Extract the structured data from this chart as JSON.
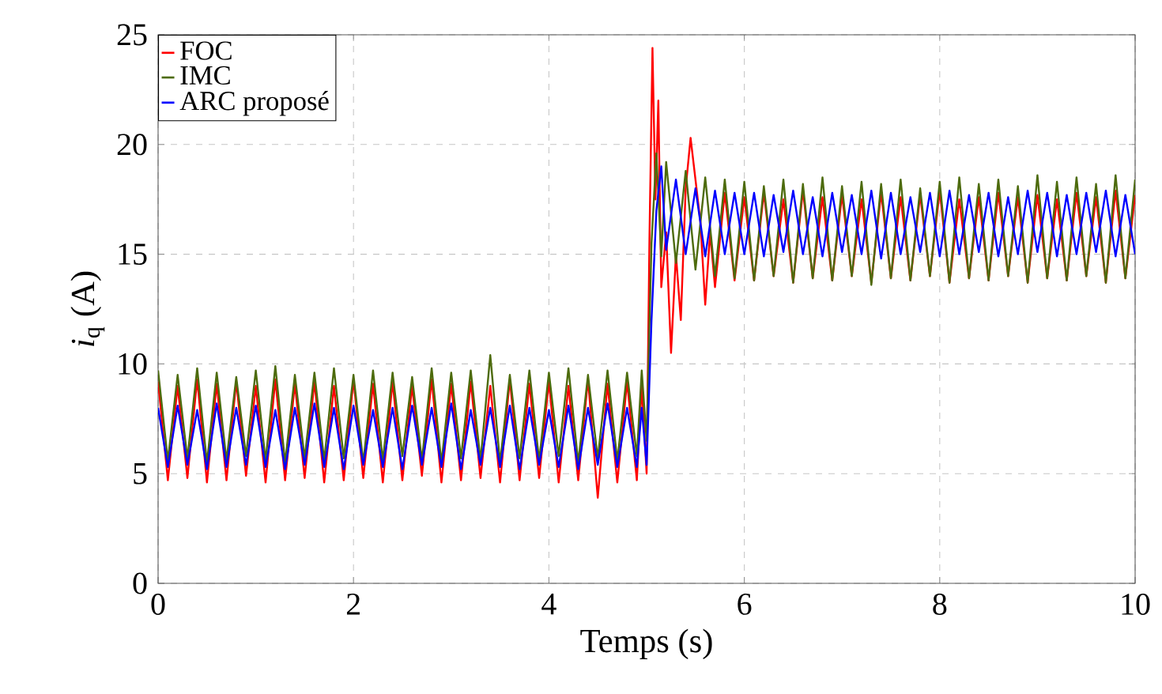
{
  "chart_data": {
    "type": "line",
    "xlabel": "Temps (s)",
    "ylabel": "*i*$_{q}$ (A)",
    "xlim": [
      0,
      10
    ],
    "ylim": [
      0,
      25
    ],
    "xticks": [
      0,
      2,
      4,
      6,
      8,
      10
    ],
    "yticks": [
      0,
      5,
      10,
      15,
      20,
      25
    ],
    "grid": true,
    "legend": "top left",
    "line_style": "solid",
    "series": [
      {
        "name": "FOC",
        "color": "#ff0000",
        "x": [
          0,
          0.1,
          0.2,
          0.3,
          0.4,
          0.5,
          0.6,
          0.7,
          0.8,
          0.9,
          1.0,
          1.1,
          1.2,
          1.3,
          1.4,
          1.5,
          1.6,
          1.7,
          1.8,
          1.9,
          2.0,
          2.1,
          2.2,
          2.3,
          2.4,
          2.5,
          2.6,
          2.7,
          2.8,
          2.9,
          3.0,
          3.1,
          3.2,
          3.3,
          3.4,
          3.5,
          3.6,
          3.7,
          3.8,
          3.9,
          4.0,
          4.1,
          4.2,
          4.3,
          4.4,
          4.5,
          4.6,
          4.7,
          4.8,
          4.9,
          4.95,
          5.0,
          5.03,
          5.06,
          5.09,
          5.12,
          5.15,
          5.2,
          5.25,
          5.3,
          5.35,
          5.4,
          5.45,
          5.55,
          5.6,
          5.65,
          5.7,
          5.8,
          5.9,
          6.0,
          6.1,
          6.2,
          6.3,
          6.4,
          6.5,
          6.6,
          6.7,
          6.8,
          6.9,
          7.0,
          7.1,
          7.2,
          7.3,
          7.4,
          7.5,
          7.6,
          7.7,
          7.8,
          7.9,
          8.0,
          8.1,
          8.2,
          8.3,
          8.4,
          8.5,
          8.6,
          8.7,
          8.8,
          8.9,
          9.0,
          9.1,
          9.2,
          9.3,
          9.4,
          9.5,
          9.6,
          9.7,
          9.8,
          9.9,
          10.0
        ],
        "values": [
          9.2,
          4.7,
          9.0,
          4.8,
          9.3,
          4.6,
          9.1,
          4.7,
          9.2,
          4.9,
          9.0,
          4.6,
          9.3,
          4.7,
          9.1,
          4.8,
          9.2,
          4.6,
          9.0,
          4.7,
          9.3,
          4.8,
          9.1,
          4.6,
          9.2,
          4.7,
          9.0,
          4.9,
          9.3,
          4.6,
          9.1,
          4.7,
          9.2,
          4.8,
          9.0,
          4.6,
          9.3,
          4.7,
          9.1,
          4.8,
          9.2,
          4.6,
          9.0,
          4.7,
          9.3,
          3.9,
          9.1,
          4.6,
          9.2,
          4.7,
          9.0,
          5.0,
          16.0,
          24.4,
          17.5,
          22.0,
          13.5,
          16.0,
          10.5,
          15.0,
          12.0,
          18.0,
          20.3,
          16.5,
          12.7,
          16.0,
          13.5,
          17.8,
          13.8,
          17.6,
          13.8,
          17.8,
          14.0,
          17.5,
          13.7,
          17.9,
          13.9,
          17.6,
          13.8,
          17.7,
          14.0,
          17.5,
          13.7,
          17.8,
          13.9,
          17.6,
          13.8,
          17.7,
          14.0,
          17.9,
          13.7,
          17.5,
          13.9,
          17.6,
          13.8,
          17.8,
          14.0,
          17.6,
          13.7,
          17.7,
          13.9,
          17.5,
          13.8,
          17.8,
          14.0,
          17.6,
          13.7,
          17.9,
          13.9,
          17.7
        ]
      },
      {
        "name": "IMC",
        "color": "#4d6b0d",
        "x": [
          0,
          0.1,
          0.2,
          0.3,
          0.4,
          0.5,
          0.6,
          0.7,
          0.8,
          0.9,
          1.0,
          1.1,
          1.2,
          1.3,
          1.4,
          1.5,
          1.6,
          1.7,
          1.8,
          1.9,
          2.0,
          2.1,
          2.2,
          2.3,
          2.4,
          2.5,
          2.6,
          2.7,
          2.8,
          2.9,
          3.0,
          3.1,
          3.2,
          3.3,
          3.4,
          3.5,
          3.6,
          3.7,
          3.8,
          3.9,
          4.0,
          4.1,
          4.2,
          4.3,
          4.4,
          4.5,
          4.6,
          4.7,
          4.8,
          4.9,
          4.95,
          5.0,
          5.05,
          5.1,
          5.15,
          5.2,
          5.3,
          5.4,
          5.5,
          5.6,
          5.7,
          5.8,
          5.9,
          6.0,
          6.1,
          6.2,
          6.3,
          6.4,
          6.5,
          6.6,
          6.7,
          6.8,
          6.9,
          7.0,
          7.1,
          7.2,
          7.3,
          7.4,
          7.5,
          7.6,
          7.7,
          7.8,
          7.9,
          8.0,
          8.1,
          8.2,
          8.3,
          8.4,
          8.5,
          8.6,
          8.7,
          8.8,
          8.9,
          9.0,
          9.1,
          9.2,
          9.3,
          9.4,
          9.5,
          9.6,
          9.7,
          9.8,
          9.9,
          10.0
        ],
        "values": [
          9.7,
          5.6,
          9.5,
          5.7,
          9.8,
          5.5,
          9.6,
          5.6,
          9.4,
          5.8,
          9.7,
          5.6,
          9.9,
          5.5,
          9.5,
          5.7,
          9.6,
          5.6,
          9.8,
          5.7,
          9.5,
          5.5,
          9.7,
          5.6,
          9.6,
          5.8,
          9.4,
          5.6,
          9.8,
          5.5,
          9.6,
          5.7,
          9.7,
          5.6,
          10.4,
          5.5,
          9.5,
          5.7,
          9.7,
          5.6,
          9.6,
          5.8,
          9.8,
          5.5,
          9.5,
          5.7,
          9.7,
          5.6,
          9.6,
          5.8,
          9.7,
          6.5,
          15.5,
          19.6,
          14.9,
          19.2,
          14.6,
          18.8,
          14.3,
          18.5,
          14.0,
          18.4,
          13.9,
          18.3,
          13.8,
          18.1,
          14.0,
          18.4,
          13.7,
          18.2,
          13.9,
          18.5,
          13.8,
          18.1,
          14.0,
          18.3,
          13.6,
          18.2,
          13.9,
          18.4,
          13.8,
          18.0,
          14.0,
          18.3,
          13.7,
          18.5,
          13.9,
          18.2,
          13.8,
          18.4,
          14.0,
          18.1,
          13.7,
          18.6,
          13.9,
          18.3,
          13.8,
          18.5,
          14.0,
          18.2,
          13.7,
          18.6,
          13.9,
          18.4
        ]
      },
      {
        "name": "ARC proposé",
        "color": "#0000ff",
        "x": [
          0,
          0.1,
          0.2,
          0.3,
          0.4,
          0.5,
          0.6,
          0.7,
          0.8,
          0.9,
          1.0,
          1.1,
          1.2,
          1.3,
          1.4,
          1.5,
          1.6,
          1.7,
          1.8,
          1.9,
          2.0,
          2.1,
          2.2,
          2.3,
          2.4,
          2.5,
          2.6,
          2.7,
          2.8,
          2.9,
          3.0,
          3.1,
          3.2,
          3.3,
          3.4,
          3.5,
          3.6,
          3.7,
          3.8,
          3.9,
          4.0,
          4.1,
          4.2,
          4.3,
          4.4,
          4.5,
          4.6,
          4.7,
          4.8,
          4.9,
          4.95,
          5.0,
          5.05,
          5.1,
          5.15,
          5.2,
          5.3,
          5.4,
          5.5,
          5.6,
          5.7,
          5.8,
          5.9,
          6.0,
          6.1,
          6.2,
          6.3,
          6.4,
          6.5,
          6.6,
          6.7,
          6.8,
          6.9,
          7.0,
          7.1,
          7.2,
          7.3,
          7.4,
          7.5,
          7.6,
          7.7,
          7.8,
          7.9,
          8.0,
          8.1,
          8.2,
          8.3,
          8.4,
          8.5,
          8.6,
          8.7,
          8.8,
          8.9,
          9.0,
          9.1,
          9.2,
          9.3,
          9.4,
          9.5,
          9.6,
          9.7,
          9.8,
          9.9,
          10.0
        ],
        "values": [
          8.0,
          5.3,
          8.1,
          5.4,
          7.9,
          5.2,
          8.2,
          5.3,
          8.0,
          5.4,
          8.1,
          5.3,
          7.9,
          5.2,
          8.0,
          5.4,
          8.2,
          5.3,
          8.0,
          5.2,
          8.1,
          5.4,
          7.9,
          5.3,
          8.0,
          5.2,
          8.1,
          5.4,
          8.0,
          5.3,
          8.2,
          5.2,
          7.9,
          5.4,
          8.0,
          5.3,
          8.1,
          5.2,
          8.0,
          5.4,
          7.9,
          5.3,
          8.1,
          5.2,
          8.0,
          5.4,
          8.2,
          5.3,
          8.0,
          5.3,
          8.0,
          5.4,
          12.0,
          17.0,
          19.0,
          15.2,
          18.4,
          15.0,
          18.0,
          14.9,
          17.9,
          15.0,
          17.8,
          15.0,
          17.8,
          14.9,
          17.7,
          15.1,
          17.9,
          15.0,
          17.6,
          14.9,
          17.8,
          15.1,
          17.7,
          15.0,
          17.9,
          14.8,
          17.8,
          15.0,
          17.6,
          15.1,
          17.8,
          14.9,
          17.9,
          15.0,
          17.7,
          15.1,
          17.8,
          14.9,
          17.6,
          15.0,
          17.9,
          15.1,
          17.8,
          14.9,
          17.7,
          15.0,
          17.8,
          15.1,
          17.9,
          14.9,
          17.7,
          15.0
        ]
      }
    ]
  }
}
